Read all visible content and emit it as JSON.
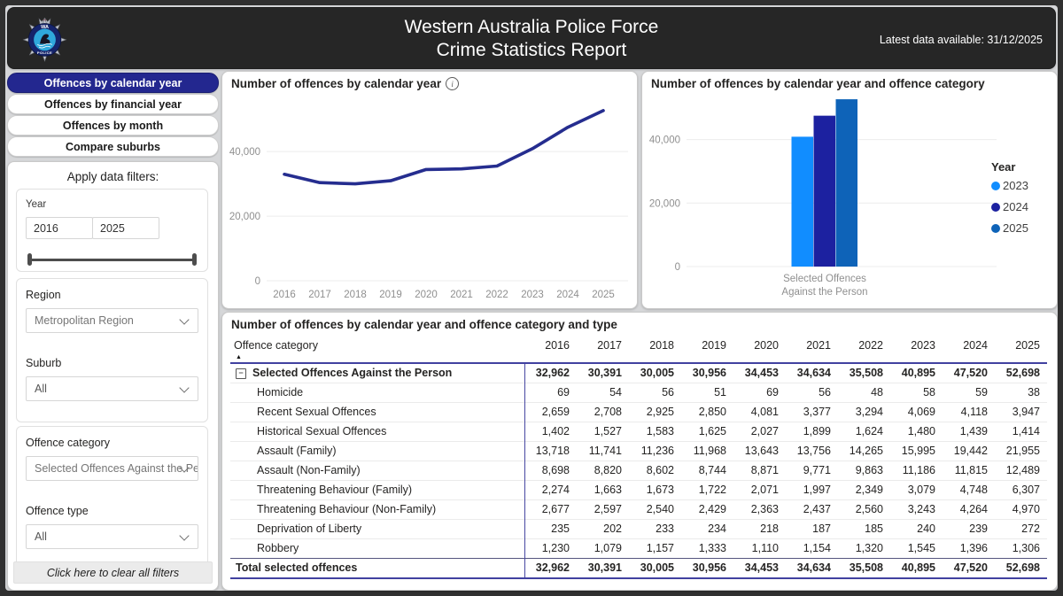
{
  "header": {
    "title_line1": "Western Australia Police Force",
    "title_line2": "Crime Statistics Report",
    "latest_data_label": "Latest data available: 31/12/2025",
    "logo": {
      "wa": "WA",
      "police": "POLICE"
    }
  },
  "nav": {
    "items": [
      {
        "label": "Offences by calendar year",
        "selected": true
      },
      {
        "label": "Offences by financial year",
        "selected": false
      },
      {
        "label": "Offences by month",
        "selected": false
      },
      {
        "label": "Compare suburbs",
        "selected": false
      }
    ]
  },
  "filters": {
    "heading": "Apply data filters:",
    "year": {
      "label": "Year",
      "from": "2016",
      "to": "2025"
    },
    "region": {
      "label": "Region",
      "value": "Metropolitan Region"
    },
    "suburb": {
      "label": "Suburb",
      "value": "All"
    },
    "offence_category": {
      "label": "Offence category",
      "value": "Selected Offences Against the Pers..."
    },
    "offence_type": {
      "label": "Offence type",
      "value": "All"
    },
    "clear_button_label": "Click here to clear all filters"
  },
  "chart_data": [
    {
      "type": "line",
      "title": "Number of offences by calendar year",
      "x": [
        "2016",
        "2017",
        "2018",
        "2019",
        "2020",
        "2021",
        "2022",
        "2023",
        "2024",
        "2025"
      ],
      "series": [
        {
          "name": "Number of offences",
          "values": [
            32962,
            30391,
            30005,
            30956,
            34453,
            34634,
            35508,
            40895,
            47520,
            52698
          ]
        }
      ],
      "ylim": [
        0,
        56500
      ],
      "yticks": [
        0,
        20000,
        40000
      ],
      "grid": true,
      "line_color": "#252D8F"
    },
    {
      "type": "bar",
      "title": "Number of offences by calendar year and offence category",
      "categories": [
        "Selected Offences Against the Person"
      ],
      "category_label_lines": [
        "Selected Offences",
        "Against the Person"
      ],
      "series": [
        {
          "name": "2023",
          "values": [
            40895
          ],
          "color": "#118DFF"
        },
        {
          "name": "2024",
          "values": [
            47520
          ],
          "color": "#1C21A0"
        },
        {
          "name": "2025",
          "values": [
            52698
          ],
          "color": "#0E63B8"
        }
      ],
      "legend_title": "Year",
      "legend_position": "right",
      "ylim": [
        0,
        53000
      ],
      "yticks": [
        0,
        20000,
        40000
      ],
      "grid": true
    }
  ],
  "table": {
    "title": "Number of offences by calendar year and offence category and type",
    "first_column_header": "Offence category",
    "sort_indicator": "▲",
    "year_columns": [
      "2016",
      "2017",
      "2018",
      "2019",
      "2020",
      "2021",
      "2022",
      "2023",
      "2024",
      "2025"
    ],
    "rows": [
      {
        "label": "Selected Offences Against the Person",
        "style": "category",
        "collapse_icon": true,
        "values": [
          "32,962",
          "30,391",
          "30,005",
          "30,956",
          "34,453",
          "34,634",
          "35,508",
          "40,895",
          "47,520",
          "52,698"
        ]
      },
      {
        "label": "Homicide",
        "style": "sub",
        "values": [
          "69",
          "54",
          "56",
          "51",
          "69",
          "56",
          "48",
          "58",
          "59",
          "38"
        ]
      },
      {
        "label": "Recent Sexual Offences",
        "style": "sub",
        "values": [
          "2,659",
          "2,708",
          "2,925",
          "2,850",
          "4,081",
          "3,377",
          "3,294",
          "4,069",
          "4,118",
          "3,947"
        ]
      },
      {
        "label": "Historical Sexual Offences",
        "style": "sub",
        "values": [
          "1,402",
          "1,527",
          "1,583",
          "1,625",
          "2,027",
          "1,899",
          "1,624",
          "1,480",
          "1,439",
          "1,414"
        ]
      },
      {
        "label": "Assault (Family)",
        "style": "sub",
        "values": [
          "13,718",
          "11,741",
          "11,236",
          "11,968",
          "13,643",
          "13,756",
          "14,265",
          "15,995",
          "19,442",
          "21,955"
        ]
      },
      {
        "label": "Assault (Non-Family)",
        "style": "sub",
        "values": [
          "8,698",
          "8,820",
          "8,602",
          "8,744",
          "8,871",
          "9,771",
          "9,863",
          "11,186",
          "11,815",
          "12,489"
        ]
      },
      {
        "label": "Threatening Behaviour (Family)",
        "style": "sub",
        "values": [
          "2,274",
          "1,663",
          "1,673",
          "1,722",
          "2,071",
          "1,997",
          "2,349",
          "3,079",
          "4,748",
          "6,307"
        ]
      },
      {
        "label": "Threatening Behaviour (Non-Family)",
        "style": "sub",
        "values": [
          "2,677",
          "2,597",
          "2,540",
          "2,429",
          "2,363",
          "2,437",
          "2,560",
          "3,243",
          "4,264",
          "4,970"
        ]
      },
      {
        "label": "Deprivation of Liberty",
        "style": "sub",
        "values": [
          "235",
          "202",
          "233",
          "234",
          "218",
          "187",
          "185",
          "240",
          "239",
          "272"
        ]
      },
      {
        "label": "Robbery",
        "style": "sub",
        "values": [
          "1,230",
          "1,079",
          "1,157",
          "1,333",
          "1,110",
          "1,154",
          "1,320",
          "1,545",
          "1,396",
          "1,306"
        ]
      },
      {
        "label": "Total selected offences",
        "style": "total",
        "values": [
          "32,962",
          "30,391",
          "30,005",
          "30,956",
          "34,453",
          "34,634",
          "35,508",
          "40,895",
          "47,520",
          "52,698"
        ]
      }
    ]
  }
}
